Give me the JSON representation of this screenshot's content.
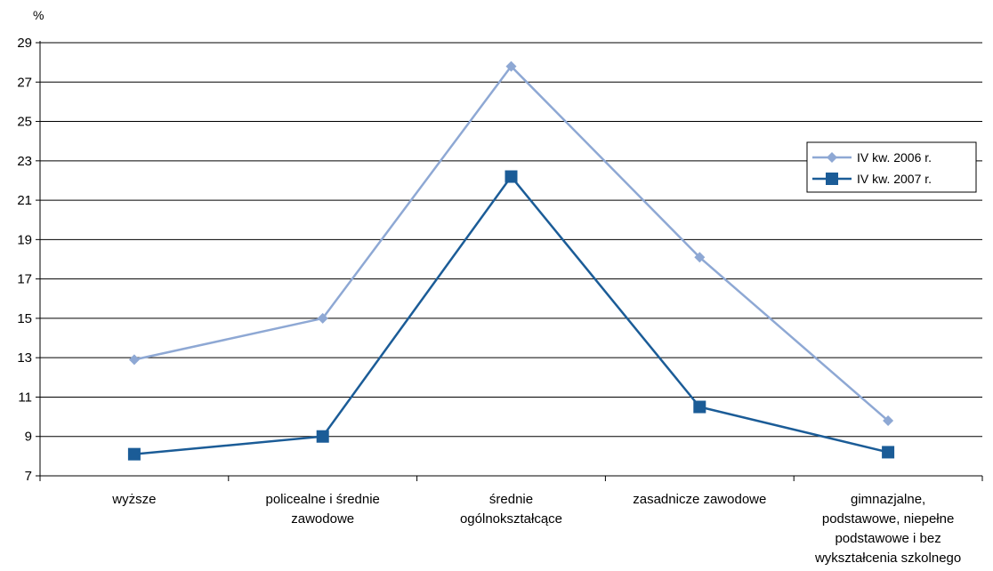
{
  "chart_data": {
    "type": "line",
    "ylabel": "%",
    "ylim": [
      7,
      29
    ],
    "yticks": [
      7,
      9,
      11,
      13,
      15,
      17,
      19,
      21,
      23,
      25,
      27,
      29
    ],
    "grid": true,
    "legend_position": "right",
    "categories": [
      [
        "wyższe"
      ],
      [
        "policealne i średnie",
        "zawodowe"
      ],
      [
        "średnie",
        "ogólnokształcące"
      ],
      [
        "zasadnicze zawodowe"
      ],
      [
        "gimnazjalne,",
        "podstawowe, niepełne",
        "podstawowe i bez",
        "wykształcenia szkolnego"
      ]
    ],
    "series": [
      {
        "name": "IV kw. 2006 r.",
        "values": [
          12.9,
          15.0,
          27.8,
          18.1,
          9.8
        ],
        "color": "#8ea8d4",
        "marker": "diamond"
      },
      {
        "name": "IV kw. 2007 r.",
        "values": [
          8.1,
          9.0,
          22.2,
          10.5,
          8.2
        ],
        "color": "#1b5c97",
        "marker": "square"
      }
    ]
  }
}
